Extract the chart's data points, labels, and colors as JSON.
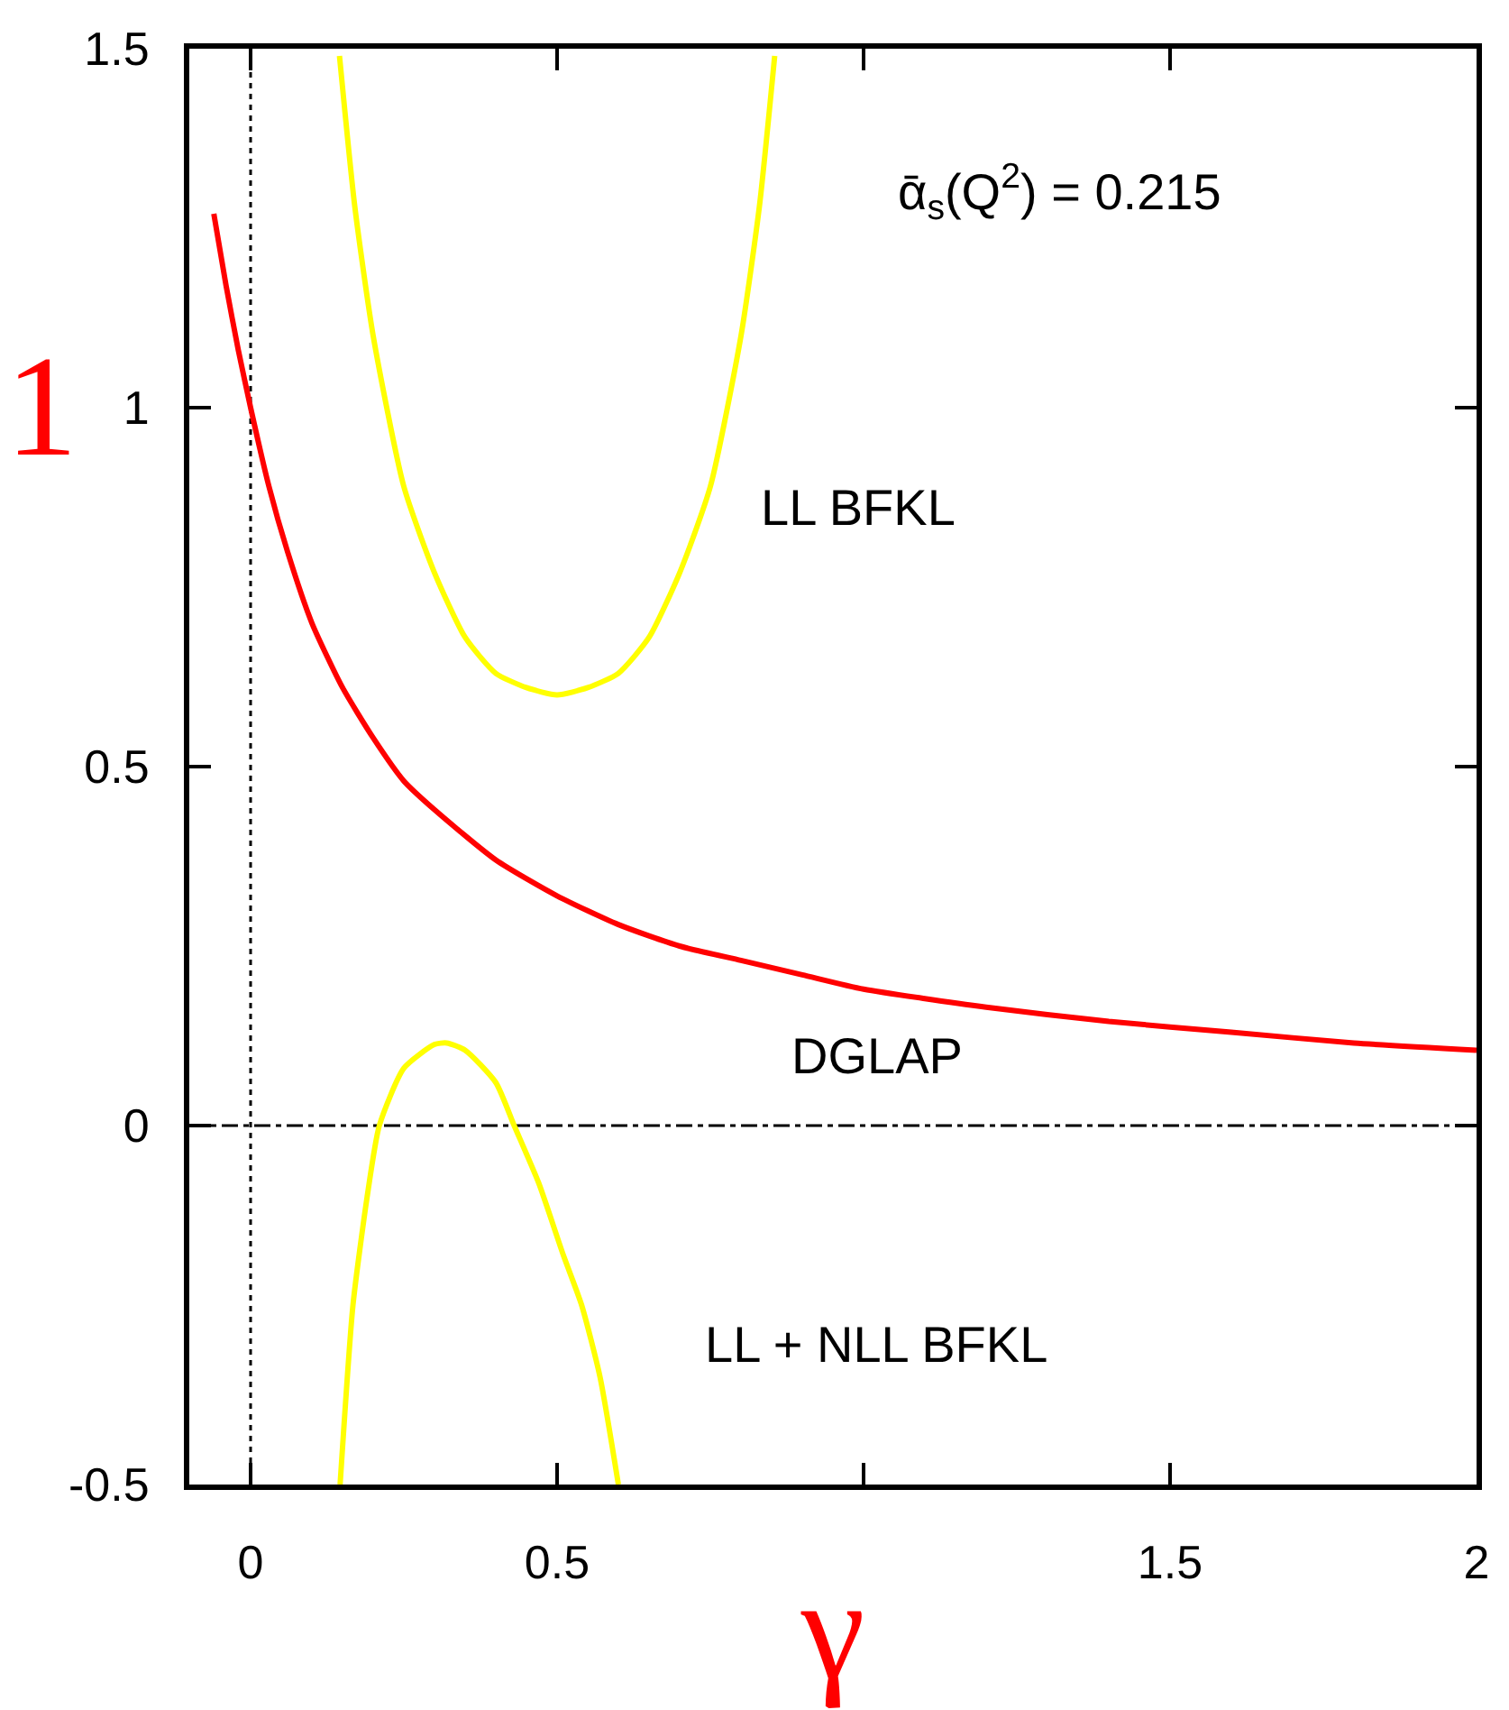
{
  "chart_data": {
    "type": "line",
    "xlabel": "γ",
    "ylabel": "1",
    "xlim": [
      -0.1,
      2
    ],
    "xticks": [
      0,
      0.5,
      {
        "value": 1,
        "label": null
      },
      1.5,
      2
    ],
    "ylim": [
      -0.5,
      1.5
    ],
    "yticks": [
      -0.5,
      0,
      0.5,
      1,
      1.5
    ],
    "grid": false,
    "marker": "none",
    "series": [
      {
        "color": "#ff0000",
        "x": [
          -0.06,
          -0.04,
          -0.02,
          0,
          0.03,
          0.06,
          0.1,
          0.15,
          0.2,
          0.25,
          0.3,
          0.4,
          0.5,
          0.6,
          0.7,
          0.8,
          0.9,
          1.0,
          1.2,
          1.4,
          1.6,
          1.8,
          2.0
        ],
        "values": [
          1.27,
          1.17,
          1.08,
          1.0,
          0.89,
          0.8,
          0.7,
          0.61,
          0.54,
          0.48,
          0.44,
          0.37,
          0.32,
          0.28,
          0.25,
          0.23,
          0.21,
          0.19,
          0.165,
          0.145,
          0.13,
          0.115,
          0.105
        ]
      },
      {
        "color": "#ffff00",
        "x": [
          0.145,
          0.17,
          0.2,
          0.25,
          0.3,
          0.35,
          0.4,
          0.45,
          0.5,
          0.55,
          0.6,
          0.65,
          0.7,
          0.75,
          0.8,
          0.83,
          0.855
        ],
        "values": [
          1.49,
          1.28,
          1.1,
          0.89,
          0.77,
          0.68,
          0.63,
          0.61,
          0.6,
          0.61,
          0.63,
          0.68,
          0.77,
          0.89,
          1.1,
          1.28,
          1.49
        ]
      },
      {
        "color": "#ffff00",
        "x": [
          0.146,
          0.167,
          0.19,
          0.21,
          0.25,
          0.3,
          0.32,
          0.35,
          0.4,
          0.43,
          0.47,
          0.51,
          0.54,
          0.57,
          0.6
        ],
        "values": [
          -0.5,
          -0.25,
          -0.1,
          0.0,
          0.08,
          0.113,
          0.115,
          0.105,
          0.06,
          0.0,
          -0.08,
          -0.18,
          -0.25,
          -0.35,
          -0.5
        ]
      }
    ],
    "ref_lines": [
      {
        "axis": "y",
        "value": 0,
        "color": "#000000",
        "line_style": "dashed"
      },
      {
        "axis": "x",
        "value": 0,
        "color": "#000000",
        "line_style": "dotted"
      }
    ],
    "annotations": [
      "ᾱ$_{s}$(Q$^{2}$) = 0.215",
      "LL BFKL",
      "DGLAP",
      "LL + NLL BFKL"
    ]
  }
}
